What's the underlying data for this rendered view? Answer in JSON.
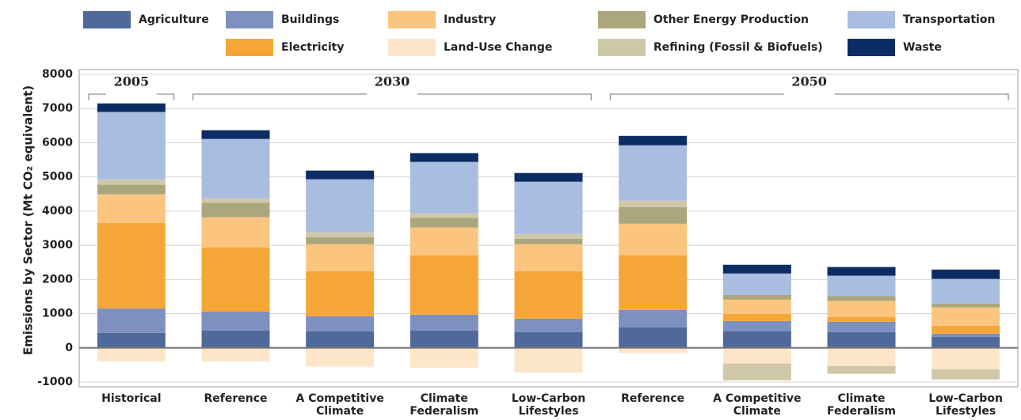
{
  "chart_data": {
    "type": "bar",
    "stacked": true,
    "y_label": "Emissions by Sector (Mt CO₂ equivalent)",
    "categories": [
      "Historical",
      "Reference",
      "A Competitive Climate",
      "Climate Federalism",
      "Low-Carbon Lifestyles",
      "Reference",
      "A Competitive Climate",
      "Climate Federalism",
      "Low-Carbon Lifestyles"
    ],
    "groups": [
      {
        "label": "2005",
        "span": 1
      },
      {
        "label": "2030",
        "span": 4
      },
      {
        "label": "2050",
        "span": 4
      }
    ],
    "series": [
      {
        "name": "Agriculture",
        "color": "#4f6a9a",
        "values": [
          440,
          510,
          480,
          510,
          460,
          600,
          480,
          460,
          325
        ]
      },
      {
        "name": "Buildings",
        "color": "#7d90bf",
        "values": [
          710,
          550,
          445,
          460,
          395,
          510,
          305,
          305,
          90
        ]
      },
      {
        "name": "Electricity",
        "color": "#f6a637",
        "values": [
          2500,
          1880,
          1320,
          1740,
          1390,
          1600,
          210,
          140,
          235
        ]
      },
      {
        "name": "Industry",
        "color": "#fcc57f",
        "values": [
          840,
          880,
          785,
          810,
          785,
          920,
          415,
          465,
          530
        ]
      },
      {
        "name": "Land-Use Change",
        "color": "#fde6c8",
        "values": [
          -400,
          -400,
          -550,
          -580,
          -720,
          -150,
          -460,
          -530,
          -625
        ]
      },
      {
        "name": "Other Energy Production",
        "color": "#aca67c",
        "values": [
          280,
          420,
          210,
          280,
          160,
          490,
          140,
          140,
          115
        ]
      },
      {
        "name": "Refining (Fossil & Biofuels)",
        "color": "#cfc8a8",
        "values": [
          160,
          135,
          140,
          135,
          145,
          185,
          -490,
          -230,
          -300
        ]
      },
      {
        "name": "Transportation",
        "color": "#a8bde0",
        "values": [
          1970,
          1735,
          1550,
          1505,
          1525,
          1620,
          625,
          600,
          720
        ]
      },
      {
        "name": "Waste",
        "color": "#0b2d63",
        "values": [
          250,
          255,
          255,
          255,
          255,
          275,
          255,
          255,
          275
        ]
      }
    ],
    "ylim": [
      -1000,
      8000
    ],
    "yticks": [
      -1000,
      0,
      1000,
      2000,
      3000,
      4000,
      5000,
      6000,
      7000,
      8000
    ],
    "grid": true
  }
}
